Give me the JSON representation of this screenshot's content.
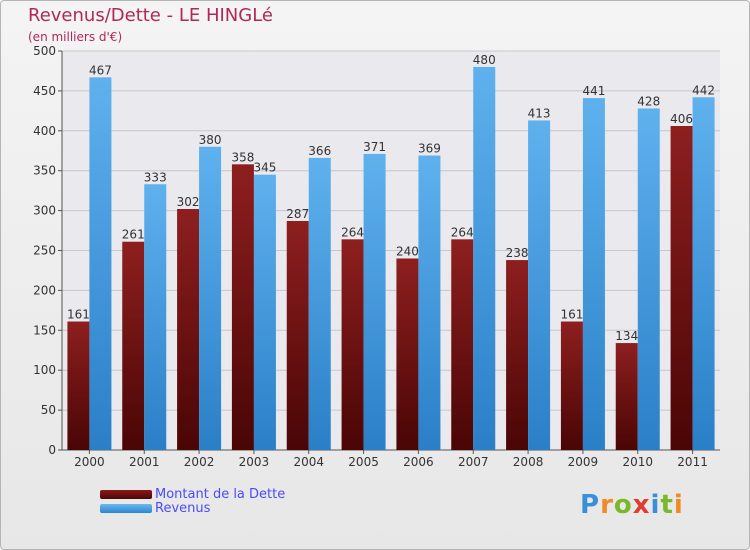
{
  "chart_data": {
    "type": "bar",
    "title": "Revenus/Dette - LE HINGLé",
    "subtitle": "(en milliers d'€)",
    "categories": [
      "2000",
      "2001",
      "2002",
      "2003",
      "2004",
      "2005",
      "2006",
      "2007",
      "2008",
      "2009",
      "2010",
      "2011"
    ],
    "series": [
      {
        "name": "Montant de la Dette",
        "color": "#8b1a1a",
        "values": [
          161,
          261,
          302,
          358,
          287,
          264,
          240,
          264,
          238,
          161,
          134,
          406
        ]
      },
      {
        "name": "Revenus",
        "color": "#4aa3e6",
        "values": [
          467,
          333,
          380,
          345,
          366,
          371,
          369,
          480,
          413,
          441,
          428,
          442
        ]
      }
    ],
    "ylim": [
      0,
      500
    ],
    "yticks": [
      "0",
      "50",
      "100",
      "150",
      "200",
      "250",
      "300",
      "350",
      "400",
      "450",
      "500"
    ],
    "grid": true,
    "legend_position": "bottom-left"
  },
  "logo": {
    "letters": [
      "P",
      "r",
      "o",
      "x",
      "i",
      "t",
      "i"
    ],
    "colors": [
      "#3b8fd9",
      "#f08a24",
      "#7ab829",
      "#e03c31",
      "#3b8fd9",
      "#7ab829",
      "#f08a24"
    ]
  }
}
